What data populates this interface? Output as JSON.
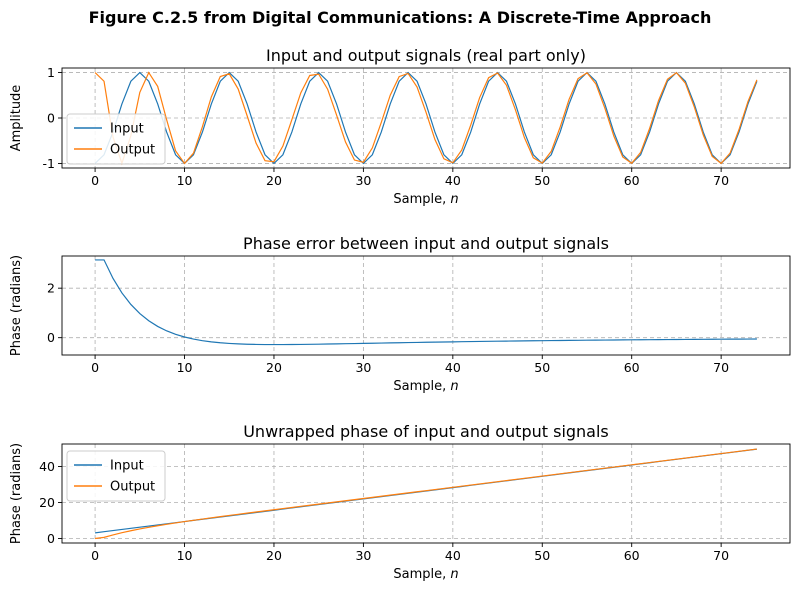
{
  "figure": {
    "suptitle": "Figure C.2.5 from Digital Communications: A Discrete-Time Approach"
  },
  "colors": {
    "input": "#1f77b4",
    "output": "#ff7f0e",
    "grid": "#b0b0b0"
  },
  "chart_data": [
    {
      "type": "line",
      "title": "Input and output signals (real part only)",
      "xlabel": "Sample, ",
      "xlabel_var": "n",
      "ylabel": "Amplitude",
      "xlim": [
        -3.7,
        77.7
      ],
      "ylim": [
        -1.1,
        1.1
      ],
      "xticks": [
        0,
        10,
        20,
        30,
        40,
        50,
        60,
        70
      ],
      "yticks": [
        -1,
        0,
        1
      ],
      "grid": true,
      "legend": "center-left",
      "n": 75,
      "series": [
        {
          "name": "Input",
          "color": "#1f77b4",
          "formula": "cos(2*pi*0.1*n + pi)"
        },
        {
          "name": "Output",
          "color": "#ff7f0e",
          "formula": "cos(unwrapped_output_phase(n))"
        }
      ]
    },
    {
      "type": "line",
      "title": "Phase error between input and output signals",
      "xlabel": "Sample, ",
      "xlabel_var": "n",
      "ylabel": "Phase (radians)",
      "xlim": [
        -3.7,
        77.7
      ],
      "ylim": [
        -0.7,
        3.3
      ],
      "xticks": [
        0,
        10,
        20,
        30,
        40,
        50,
        60,
        70
      ],
      "yticks": [
        0,
        2
      ],
      "grid": true,
      "legend": "none",
      "n": 75,
      "series": [
        {
          "color": "#1f77b4",
          "formula": "input_phase(n) - output_phase(n)",
          "start_value": 3.14159,
          "peak_min": -0.52,
          "peak_min_at": 22
        }
      ]
    },
    {
      "type": "line",
      "title": "Unwrapped phase of input and output signals",
      "xlabel": "Sample, ",
      "xlabel_var": "n",
      "ylabel": "Phase (radians)",
      "xlim": [
        -3.7,
        77.7
      ],
      "ylim": [
        -2.5,
        52.5
      ],
      "xticks": [
        0,
        10,
        20,
        30,
        40,
        50,
        60,
        70
      ],
      "yticks": [
        0,
        20,
        40
      ],
      "grid": true,
      "legend": "top-left",
      "n": 75,
      "series": [
        {
          "name": "Input",
          "color": "#1f77b4",
          "formula": "2*pi*0.1*n + pi",
          "start_value": 3.14,
          "end_value": 49.64
        },
        {
          "name": "Output",
          "color": "#ff7f0e",
          "formula": "pll_tracked_phase(n)",
          "start_value": 0.0,
          "end_value": 49.62
        }
      ]
    }
  ]
}
